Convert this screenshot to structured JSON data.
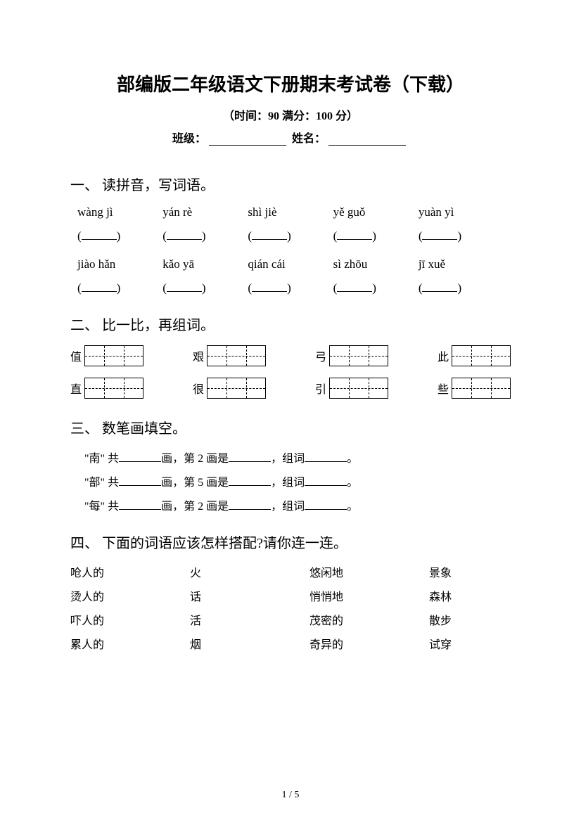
{
  "header": {
    "title": "部编版二年级语文下册期末考试卷（下载）",
    "subtitle": "（时间：90   满分：100 分）",
    "class_label": "班级：",
    "name_label": "姓名："
  },
  "section1": {
    "heading": "一、 读拼音，写词语。",
    "row1": [
      "wàng jì",
      "yán  rè",
      "shì jiè",
      "yě guǒ",
      "yuàn yì"
    ],
    "row2": [
      "jiào hǎn",
      "kǎo yā",
      "qián cái",
      "sì  zhōu",
      "jī  xuě"
    ]
  },
  "section2": {
    "heading": "二、 比一比，再组词。",
    "row1": [
      "值",
      "艰",
      "弓",
      "此"
    ],
    "row2": [
      "直",
      "很",
      "引",
      "些"
    ]
  },
  "section3": {
    "heading": "三、 数笔画填空。",
    "lines": [
      {
        "char": "南",
        "stroke_label": "画，第 2 画是",
        "tail": "，组词"
      },
      {
        "char": "部",
        "stroke_label": "画，第 5 画是",
        "tail": "，组词"
      },
      {
        "char": "每",
        "stroke_label": "画，第 2 画是",
        "tail": "，组词"
      }
    ]
  },
  "section4": {
    "heading": "四、 下面的词语应该怎样搭配?请你连一连。",
    "rows": [
      [
        "呛人的",
        "火",
        "悠闲地",
        "景象"
      ],
      [
        "烫人的",
        "话",
        "悄悄地",
        "森林"
      ],
      [
        "吓人的",
        "活",
        "茂密的",
        "散步"
      ],
      [
        "累人的",
        "烟",
        "奇异的",
        "试穿"
      ]
    ]
  },
  "footer": {
    "page": "1 / 5"
  }
}
